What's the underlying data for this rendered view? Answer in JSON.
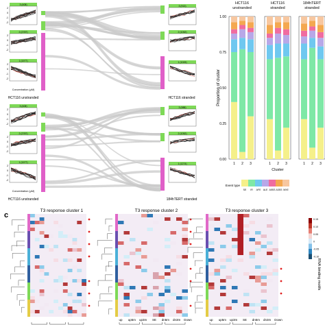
{
  "colors": {
    "green": "#7ed957",
    "magenta": "#e05fc8",
    "flow": "#c9c9c9",
    "event_types": [
      "#f5f08a",
      "#7ee8a6",
      "#6fc8f0",
      "#b8a8e8",
      "#f06ca0",
      "#f4a850",
      "#f7c7a0"
    ]
  },
  "top_left": {
    "rows": [
      {
        "left_label": "HCT116 unstranded",
        "right_label": "HCT116 stranded",
        "x_axis_label": "Concentration (µM)",
        "y_axis_ticks": [
          "2",
          "0",
          "-1",
          "-2"
        ],
        "left_clusters": [
          {
            "label": "3 (408)",
            "nodes_share": 0.12
          },
          {
            "label": "2 (2787)",
            "nodes_share": 0.17
          },
          {
            "label": "1 (1977)",
            "nodes_share": 0.71
          }
        ],
        "right_clusters": [
          {
            "label": "3 (913)",
            "nodes_share": 0.2
          },
          {
            "label": "2 (1052)",
            "nodes_share": 0.22
          },
          {
            "label": "1 (1009)",
            "nodes_share": 0.58
          }
        ]
      },
      {
        "left_label": "HCT116 unstranded",
        "right_label": "184hTERT stranded",
        "x_axis_label": "Concentration (µM)",
        "y_axis_ticks": [
          "2",
          "0",
          "-1",
          "-2"
        ],
        "left_clusters": [
          {
            "label": "3 (408)",
            "nodes_share": 0.12
          },
          {
            "label": "2 (2787)",
            "nodes_share": 0.17
          },
          {
            "label": "1 (1977)",
            "nodes_share": 0.71
          }
        ],
        "right_clusters": [
          {
            "label": "3 (988)",
            "nodes_share": 0.2
          },
          {
            "label": "2 (1052)",
            "nodes_share": 0.22
          },
          {
            "label": "1 (1274)",
            "nodes_share": 0.58
          }
        ]
      }
    ]
  },
  "chart_data": [
    {
      "type": "bar",
      "stacked": true,
      "panels": [
        "HCT116 unstranded",
        "HCT116 stranded",
        "184hTERT stranded"
      ],
      "categories": [
        "1",
        "2",
        "3"
      ],
      "xlabel": "Cluster",
      "ylabel": "Proportion of cluster",
      "ylim": [
        0,
        1
      ],
      "yticks": [
        "0.00",
        "0.25",
        "0.50",
        "0.75",
        "1.00"
      ],
      "legend_title": "Event type",
      "series": [
        {
          "name": "SE",
          "values": [
            [
              0.4,
              0.05,
              0.3
            ],
            [
              0.28,
              0.06,
              0.22
            ],
            [
              0.28,
              0.08,
              0.22
            ]
          ]
        },
        {
          "name": "IR",
          "values": [
            [
              0.35,
              0.72,
              0.45
            ],
            [
              0.42,
              0.65,
              0.5
            ],
            [
              0.42,
              0.7,
              0.48
            ]
          ]
        },
        {
          "name": "AFE",
          "values": [
            [
              0.09,
              0.08,
              0.09
            ],
            [
              0.1,
              0.1,
              0.09
            ],
            [
              0.11,
              0.07,
              0.09
            ]
          ]
        },
        {
          "name": "ALE",
          "values": [
            [
              0.04,
              0.06,
              0.05
            ],
            [
              0.05,
              0.07,
              0.06
            ],
            [
              0.05,
              0.05,
              0.06
            ]
          ]
        },
        {
          "name": "A5SS",
          "values": [
            [
              0.03,
              0.03,
              0.03
            ],
            [
              0.03,
              0.04,
              0.04
            ],
            [
              0.04,
              0.03,
              0.04
            ]
          ]
        },
        {
          "name": "A3SS",
          "values": [
            [
              0.05,
              0.03,
              0.04
            ],
            [
              0.06,
              0.04,
              0.05
            ],
            [
              0.05,
              0.04,
              0.05
            ]
          ]
        },
        {
          "name": "MXE",
          "values": [
            [
              0.04,
              0.03,
              0.04
            ],
            [
              0.06,
              0.04,
              0.04
            ],
            [
              0.05,
              0.03,
              0.06
            ]
          ]
        }
      ]
    },
    {
      "type": "heatmap",
      "panel_letter": "c",
      "titles": [
        "T3 response cluster 1",
        "T3 response cluster 2",
        "T3 response cluster 3"
      ],
      "x_labels": [
        "up",
        "up5m",
        "up3m",
        "SE",
        "dn5m",
        "dn3m",
        "Down"
      ],
      "y_label": "RNA binding motifs",
      "legend_ticks": [
        "0.15",
        "0.10",
        "0.05",
        "0",
        "-0.05",
        "-0.10"
      ]
    }
  ]
}
